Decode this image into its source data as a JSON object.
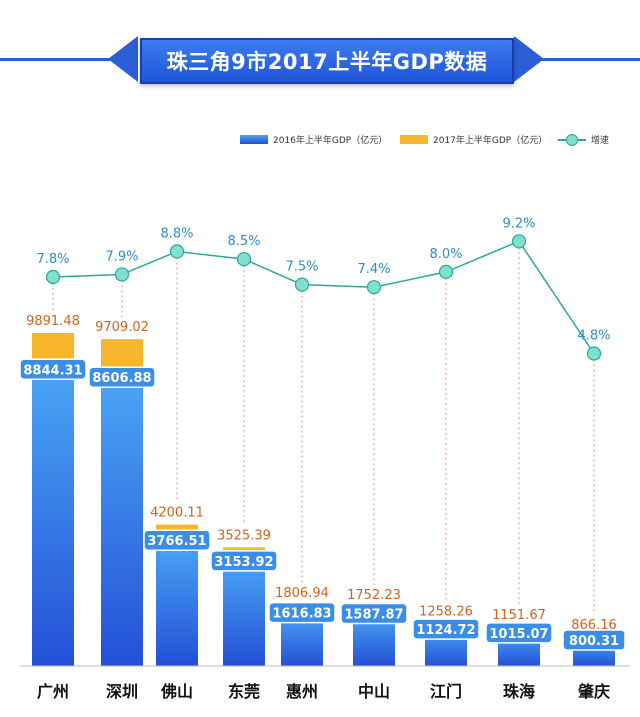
{
  "title": "珠三角9市2017上半年GDP数据",
  "colors": {
    "bar2016_top": "#4aa6f5",
    "bar2016_bottom": "#2450d6",
    "bar2017": "#f7b52c",
    "label2017": "#d0631f",
    "line": "#2aa996",
    "dot": "#7fe0cf",
    "rate_text": "#2a8fc4",
    "banner": "#2a5fd8"
  },
  "legend": {
    "s2016": "2016年上半年GDP（亿元）",
    "s2017": "2017年上半年GDP（亿元）",
    "rate": "增速"
  },
  "chart_data": {
    "type": "bar",
    "categories": [
      "广州",
      "深圳",
      "佛山",
      "东莞",
      "惠州",
      "中山",
      "江门",
      "珠海",
      "肇庆"
    ],
    "series": [
      {
        "name": "2016年上半年GDP（亿元）",
        "values": [
          8844.31,
          8606.88,
          3766.51,
          3153.92,
          1616.83,
          1587.87,
          1124.72,
          1015.07,
          800.31
        ],
        "labels": [
          "8844.31",
          "8606.88",
          "3766.51",
          "3153.92",
          "1616.83",
          "1587.87",
          "1124.72",
          "1015.07",
          "800.31"
        ]
      },
      {
        "name": "2017年上半年GDP（亿元）",
        "values": [
          9891.48,
          9709.02,
          4200.11,
          3525.39,
          1806.94,
          1752.23,
          1258.26,
          1151.67,
          866.16
        ],
        "labels": [
          "9891.48",
          "9709.02",
          "4200.11",
          "3525.39",
          "1806.94",
          "1752.23",
          "1258.26",
          "1151.67",
          "866.16"
        ]
      },
      {
        "name": "增速",
        "type": "line",
        "values": [
          7.8,
          7.9,
          8.8,
          8.5,
          7.5,
          7.4,
          8.0,
          9.2,
          4.8
        ],
        "labels": [
          "7.8%",
          "7.9%",
          "8.8%",
          "8.5%",
          "7.5%",
          "7.4%",
          "8.0%",
          "9.2%",
          "4.8%"
        ]
      }
    ],
    "legend_position": "top-right"
  }
}
